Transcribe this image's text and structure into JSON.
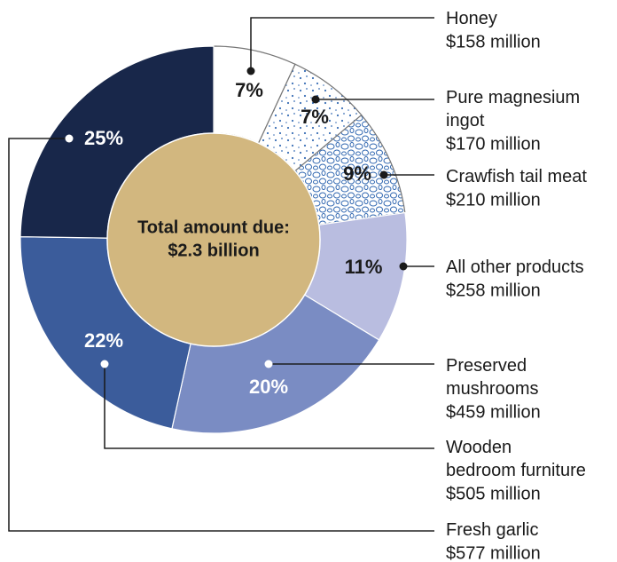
{
  "chart_data": {
    "type": "pie",
    "center_label": [
      "Total amount due:",
      "$2.3 billion"
    ],
    "categories": [
      "Honey",
      "Pure magnesium ingot",
      "Crawfish tail meat",
      "All other products",
      "Preserved mushrooms",
      "Wooden bedroom furniture",
      "Fresh garlic"
    ],
    "amounts": [
      "$158 million",
      "$170 million",
      "$210 million",
      "$258 million",
      "$459 million",
      "$505 million",
      "$577 million"
    ],
    "values": [
      7,
      7,
      9,
      11,
      20,
      22,
      25
    ],
    "value_labels": [
      "7%",
      "7%",
      "9%",
      "11%",
      "20%",
      "22%",
      "25%"
    ],
    "colors": [
      "#ffffff",
      "#ffffff",
      "#ffffff",
      "#b9bde0",
      "#7a8cc3",
      "#3b5c9b",
      "#18274a"
    ],
    "patterns": [
      null,
      "dots",
      "loops",
      null,
      null,
      null,
      null
    ],
    "center_color": "#d2b77f"
  }
}
